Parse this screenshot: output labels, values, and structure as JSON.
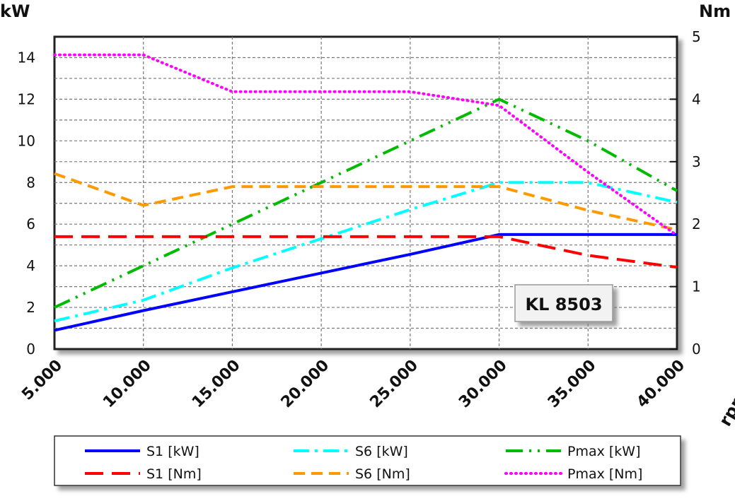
{
  "chart_data": {
    "type": "line",
    "x": [
      5000,
      10000,
      15000,
      20000,
      25000,
      30000,
      35000,
      40000
    ],
    "x_tick_labels": [
      "5.000",
      "10.000",
      "15.000",
      "20.000",
      "25.000",
      "30.000",
      "35.000",
      "40.000"
    ],
    "xlabel": "rpm",
    "ylabel_left": "kW",
    "ylim_left": [
      0,
      15
    ],
    "yticks_left": [
      "0",
      "2",
      "4",
      "6",
      "8",
      "10",
      "12",
      "14"
    ],
    "ylabel_right": "Nm",
    "ylim_right": [
      0,
      5
    ],
    "yticks_right": [
      "0",
      "1",
      "2",
      "3",
      "4",
      "5"
    ],
    "grid": true,
    "annotation": "KL 8503",
    "legend_position": "bottom",
    "series": [
      {
        "name": "S1 [kW]",
        "axis": "left",
        "color": "#0000ff",
        "style": "solid",
        "values": [
          0.9,
          1.85,
          2.75,
          3.65,
          4.55,
          5.5,
          5.5,
          5.5
        ]
      },
      {
        "name": "S6 [kW]",
        "axis": "left",
        "color": "#00ffff",
        "style": "dashdot",
        "values": [
          1.35,
          2.35,
          3.9,
          5.3,
          6.7,
          8.0,
          8.0,
          7.05
        ]
      },
      {
        "name": "Pmax [kW]",
        "axis": "left",
        "color": "#00bb00",
        "style": "dashdotdot",
        "values": [
          2.0,
          4.0,
          6.0,
          8.0,
          10.0,
          12.0,
          10.0,
          7.6
        ]
      },
      {
        "name": "S1 [Nm]",
        "axis": "right",
        "color": "#ff0000",
        "style": "dash",
        "values": [
          1.8,
          1.8,
          1.8,
          1.8,
          1.8,
          1.8,
          1.5,
          1.31
        ]
      },
      {
        "name": "S6 [Nm]",
        "axis": "right",
        "color": "#ff9900",
        "style": "shortdash",
        "values": [
          2.81,
          2.3,
          2.6,
          2.6,
          2.6,
          2.6,
          2.22,
          1.91
        ]
      },
      {
        "name": "Pmax [Nm]",
        "axis": "right",
        "color": "#ff00ff",
        "style": "dot",
        "values": [
          4.71,
          4.71,
          4.12,
          4.12,
          4.12,
          3.9,
          2.83,
          1.82
        ]
      }
    ]
  }
}
